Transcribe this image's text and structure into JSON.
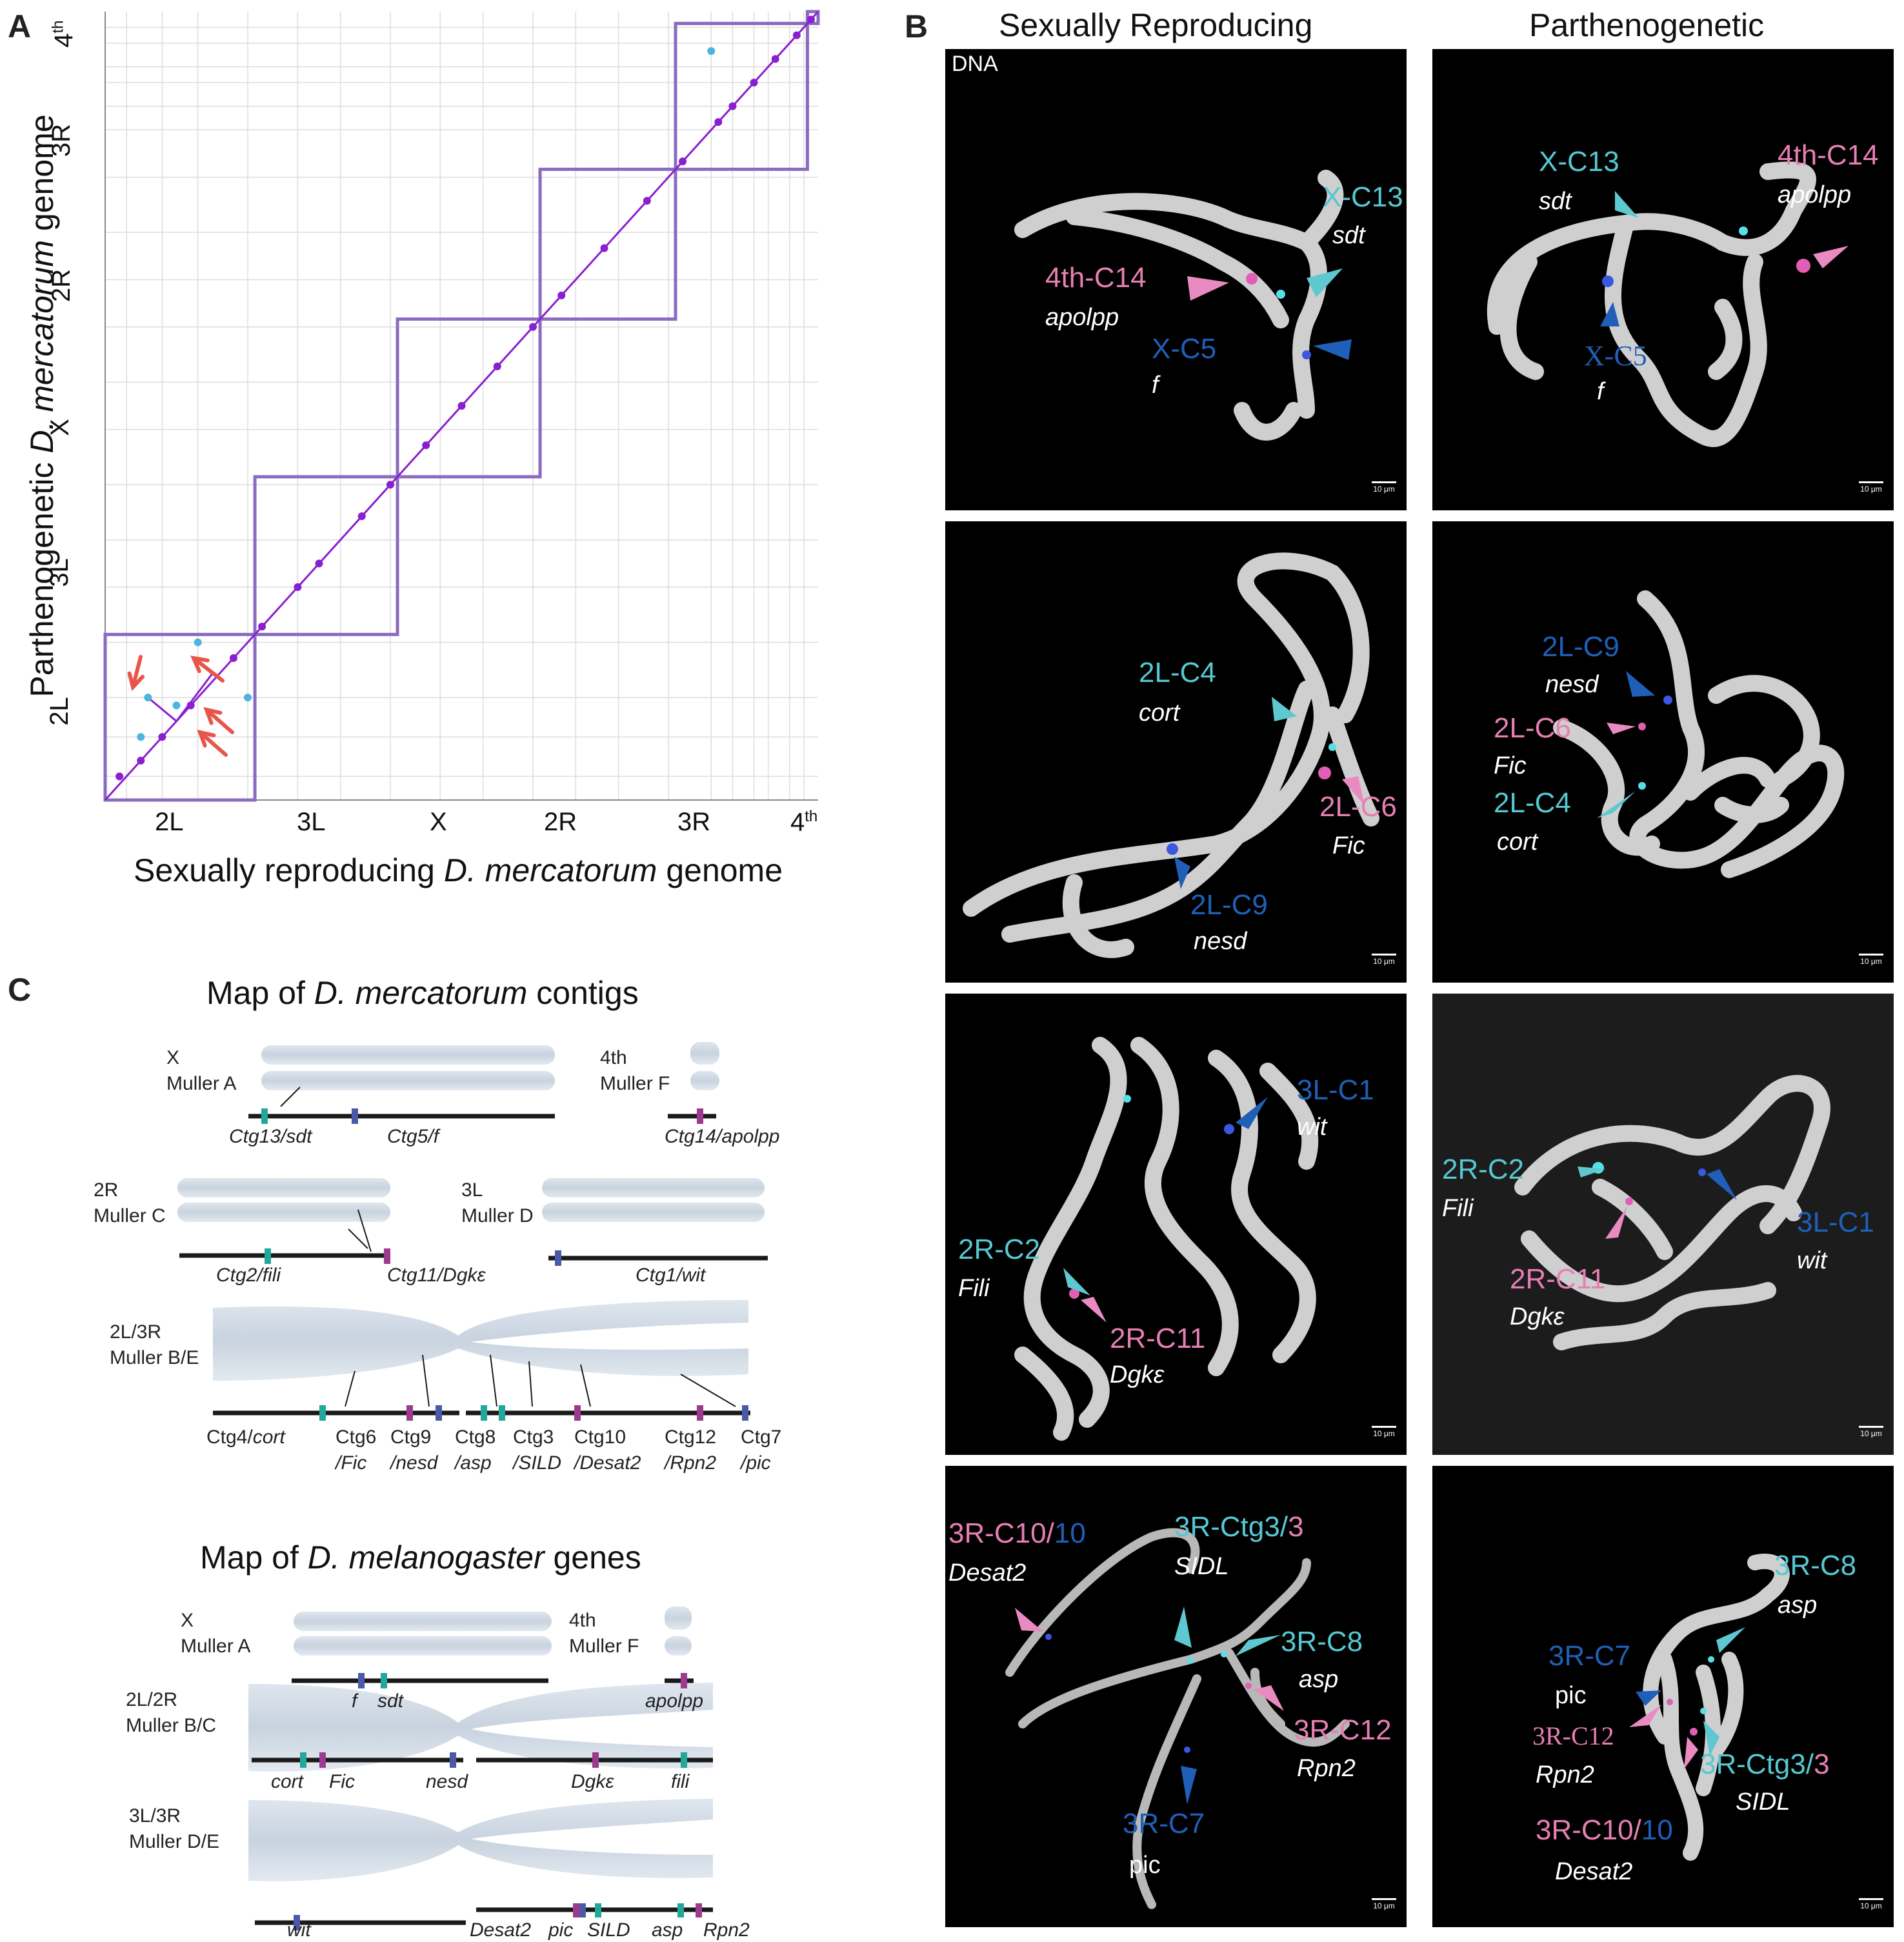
{
  "panel_labels": {
    "a": "A",
    "b": "B",
    "c": "C"
  },
  "panelA": {
    "xlabel_pre": "Sexually reproducing ",
    "xlabel_species": "D. mercatorum",
    "xlabel_post": " genome",
    "ylabel_pre": "Parthenogenetic ",
    "ylabel_species": "D. mercatorum",
    "ylabel_post": " genome",
    "x_ticks": [
      "2L",
      "3L",
      "X",
      "2R",
      "3R",
      "4"
    ],
    "y_ticks": [
      "2L",
      "3L",
      "X",
      "2R",
      "3R",
      "4"
    ],
    "fourth_sup": "th",
    "colors": {
      "diag": "#8a1fd0",
      "box": "#8a6bc0",
      "inverted": "#4fb3e0",
      "arrow": "#e8554a"
    }
  },
  "chart_data": {
    "type": "scatter",
    "title": "",
    "xlabel": "Sexually reproducing D. mercatorum genome",
    "ylabel": "Parthenogenetic D. mercatorum genome",
    "categories": [
      "2L",
      "3L",
      "X",
      "2R",
      "3R",
      "4th"
    ],
    "grid": true,
    "series": [
      {
        "values": [
          [
            0.02,
            0.03
          ],
          [
            0.05,
            0.05
          ],
          [
            0.08,
            0.08
          ],
          [
            0.12,
            0.12
          ],
          [
            0.18,
            0.18
          ],
          [
            0.22,
            0.22
          ],
          [
            0.27,
            0.27
          ],
          [
            0.3,
            0.3
          ],
          [
            0.36,
            0.36
          ],
          [
            0.4,
            0.4
          ],
          [
            0.45,
            0.45
          ],
          [
            0.5,
            0.5
          ],
          [
            0.55,
            0.55
          ],
          [
            0.6,
            0.6
          ],
          [
            0.64,
            0.64
          ],
          [
            0.7,
            0.7
          ],
          [
            0.76,
            0.76
          ],
          [
            0.81,
            0.81
          ],
          [
            0.86,
            0.86
          ],
          [
            0.88,
            0.88
          ],
          [
            0.91,
            0.91
          ],
          [
            0.94,
            0.94
          ],
          [
            0.97,
            0.97
          ],
          [
            0.99,
            0.99
          ]
        ]
      },
      {
        "values": [
          [
            0.05,
            0.08
          ],
          [
            0.06,
            0.13
          ],
          [
            0.1,
            0.12
          ],
          [
            0.2,
            0.13
          ],
          [
            0.13,
            0.2
          ],
          [
            0.85,
            0.95
          ]
        ]
      }
    ]
  },
  "panelB": {
    "col_sex": "Sexually Reproducing",
    "col_parth": "Parthenogenetic",
    "dna": "DNA",
    "scale": "10 μm",
    "r1_sex": {
      "x13": "X-C13",
      "sdt": "sdt",
      "c14": "4th-C14",
      "apolpp": "apolpp",
      "x5": "X-C5",
      "f": "f"
    },
    "r1_par": {
      "x13": "X-C13",
      "sdt": "sdt",
      "c14": "4th-C14",
      "apolpp": "apolpp",
      "x5": "X-C5",
      "f": "f"
    },
    "r2_sex": {
      "c4": "2L-C4",
      "cort": "cort",
      "c6": "2L-C6",
      "fic": "Fic",
      "c9": "2L-C9",
      "nesd": "nesd"
    },
    "r2_par": {
      "c9": "2L-C9",
      "nesd": "nesd",
      "c6": "2L-C6",
      "fic": "Fic",
      "c4": "2L-C4",
      "cort": "cort"
    },
    "r3_sex": {
      "c1": "3L-C1",
      "wit": "wit",
      "c2": "2R-C2",
      "fili": "Fili",
      "c11": "2R-C11",
      "dgk": "Dgkε"
    },
    "r3_par": {
      "c2": "2R-C2",
      "fili": "Fili",
      "c1": "3L-C1",
      "wit": "wit",
      "c11": "2R-C11",
      "dgk": "Dgkε"
    },
    "r4_sex": {
      "c10a": "3R-C10/",
      "c10b": "10",
      "desat2": "Desat2",
      "ctg3a": "3R-Ctg3/",
      "ctg3b": "3",
      "sidl": "SIDL",
      "c8": "3R-C8",
      "asp": "asp",
      "c12": "3R-C12",
      "rpn2": "Rpn2",
      "c7": "3R-C7",
      "pic": "pic"
    },
    "r4_par": {
      "c8": "3R-C8",
      "asp": "asp",
      "c7": "3R-C7",
      "pic": "pic",
      "c12": "3R-C12",
      "rpn2": "Rpn2",
      "ctg3a": "3R-Ctg3/",
      "ctg3b": "3",
      "sidl": "SIDL",
      "c10a": "3R-C10/",
      "c10b": "10",
      "desat2": "Desat2"
    }
  },
  "panelC": {
    "title1_pre": "Map of ",
    "title1_sp": "D. mercatorum",
    "title1_post": " contigs",
    "title2_pre": "Map of ",
    "title2_sp": "D. melanogaster",
    "title2_post": " genes",
    "merc": {
      "x_a": "X",
      "x_b": "Muller A",
      "f_a": "4th",
      "f_b": "Muller F",
      "ctg13": "Ctg13/sdt",
      "ctg5": "Ctg5/f",
      "ctg14": "Ctg14/apolpp",
      "r2_a": "2R",
      "r2_b": "Muller C",
      "l3_a": "3L",
      "l3_b": "Muller D",
      "ctg2": "Ctg2/fili",
      "ctg11": "Ctg11/Dgkε",
      "ctg1": "Ctg1/wit",
      "be_a": "2L/3R",
      "be_b": "Muller B/E",
      "ctg4": "Ctg4/",
      "ctg4g": "cort",
      "ctg6": "Ctg6",
      "ctg6g": "/Fic",
      "ctg9": "Ctg9",
      "ctg9g": "/nesd",
      "ctg8": "Ctg8",
      "ctg8g": "/asp",
      "ctg3": "Ctg3",
      "ctg3g": "/SILD",
      "ctg10": "Ctg10",
      "ctg10g": "/Desat2",
      "ctg12": "Ctg12",
      "ctg12g": "/Rpn2",
      "ctg7": "Ctg7",
      "ctg7g": "/pic"
    },
    "mel": {
      "x_a": "X",
      "x_b": "Muller A",
      "f_a": "4th",
      "f_b": "Muller F",
      "f": "f",
      "sdt": "sdt",
      "apolpp": "apolpp",
      "bc_a": "2L/2R",
      "bc_b": "Muller B/C",
      "cort": "cort",
      "fic": "Fic",
      "nesd": "nesd",
      "dgk": "Dgkε",
      "fili": "fili",
      "de_a": "3L/3R",
      "de_b": "Muller D/E",
      "wit": "wit",
      "desat2": "Desat2",
      "pic": "pic",
      "sild": "SILD",
      "asp": "asp",
      "rpn2": "Rpn2"
    }
  }
}
